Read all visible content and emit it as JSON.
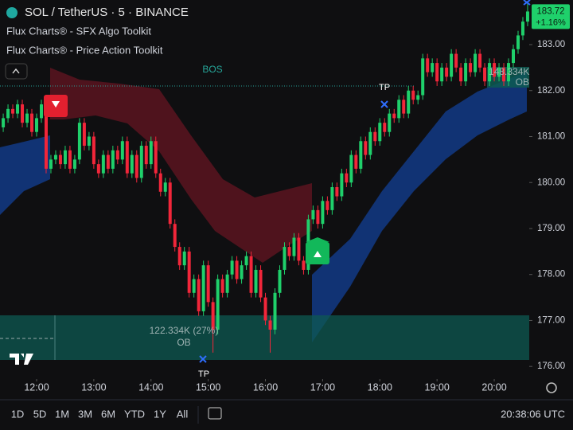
{
  "header": {
    "symbol": "SOL / TetherUS · 5 · BINANCE",
    "indicators": [
      "Flux Charts® - SFX Algo Toolkit",
      "Flux Charts® - Price Action Toolkit"
    ]
  },
  "chart_data": {
    "type": "candlestick",
    "up_color": "#1fd06b",
    "down_color": "#f2263a",
    "x": [
      "11:25",
      "11:30",
      "11:35",
      "11:40",
      "11:45",
      "11:50",
      "11:55",
      "12:00",
      "12:05",
      "12:10",
      "12:15",
      "12:20",
      "12:25",
      "12:30",
      "12:35",
      "12:40",
      "12:45",
      "12:50",
      "12:55",
      "13:00",
      "13:05",
      "13:10",
      "13:15",
      "13:20",
      "13:25",
      "13:30",
      "13:35",
      "13:40",
      "13:45",
      "13:50",
      "13:55",
      "14:00",
      "14:05",
      "14:10",
      "14:15",
      "14:20",
      "14:25",
      "14:30",
      "14:35",
      "14:40",
      "14:45",
      "14:50",
      "14:55",
      "15:00",
      "15:05",
      "15:10",
      "15:15",
      "15:20",
      "15:25",
      "15:30",
      "15:35",
      "15:40",
      "15:45",
      "15:50",
      "15:55",
      "16:00",
      "16:05",
      "16:10",
      "16:15",
      "16:20",
      "16:25",
      "16:30",
      "16:35",
      "16:40",
      "16:45",
      "16:50",
      "16:55",
      "17:00",
      "17:05",
      "17:10",
      "17:15",
      "17:20",
      "17:25",
      "17:30",
      "17:35",
      "17:40",
      "17:45",
      "17:50",
      "17:55",
      "18:00",
      "18:05",
      "18:10",
      "18:15",
      "18:20",
      "18:25",
      "18:30",
      "18:35",
      "18:40",
      "18:45",
      "18:50",
      "18:55",
      "19:00",
      "19:05",
      "19:10",
      "19:15",
      "19:20",
      "19:25",
      "19:30",
      "19:35",
      "19:40",
      "19:45",
      "19:50",
      "19:55",
      "20:00",
      "20:05",
      "20:10",
      "20:15",
      "20:20",
      "20:25",
      "20:30",
      "20:35"
    ],
    "open": [
      181.2,
      181.4,
      181.6,
      181.5,
      181.7,
      181.3,
      181.5,
      181.1,
      181.4,
      181.7,
      180.3,
      180.5,
      180.6,
      180.4,
      180.7,
      180.3,
      180.5,
      181.3,
      180.8,
      181.0,
      180.4,
      180.2,
      180.6,
      180.3,
      180.7,
      180.5,
      180.9,
      180.2,
      180.6,
      180.1,
      180.8,
      180.4,
      180.9,
      180.2,
      179.8,
      180.0,
      179.1,
      178.6,
      178.2,
      178.5,
      177.6,
      177.9,
      177.2,
      178.2,
      177.4,
      176.8,
      177.9,
      177.6,
      178.0,
      178.3,
      177.9,
      178.2,
      178.4,
      177.6,
      178.1,
      177.5,
      177.0,
      176.8,
      177.6,
      178.1,
      178.6,
      178.4,
      178.8,
      178.3,
      178.1,
      179.2,
      179.4,
      179.1,
      179.6,
      179.4,
      179.9,
      179.7,
      180.2,
      180.0,
      180.6,
      180.3,
      180.9,
      180.6,
      181.1,
      180.9,
      181.3,
      181.1,
      181.5,
      181.4,
      181.8,
      181.5,
      182.0,
      181.8,
      181.9,
      182.7,
      182.4,
      182.6,
      182.2,
      182.5,
      182.3,
      182.8,
      182.5,
      182.2,
      182.6,
      182.4,
      182.8,
      182.5,
      182.2,
      182.6,
      182.3,
      182.5,
      182.2,
      182.6,
      182.9,
      183.2,
      183.5
    ],
    "high": [
      181.5,
      181.7,
      181.7,
      181.8,
      181.8,
      181.6,
      181.6,
      181.5,
      181.8,
      181.8,
      180.6,
      180.7,
      180.7,
      180.8,
      180.8,
      180.6,
      181.4,
      181.4,
      181.1,
      181.1,
      180.5,
      180.7,
      180.7,
      180.8,
      180.8,
      181.0,
      181.0,
      180.7,
      180.7,
      180.9,
      180.9,
      181.0,
      181.0,
      180.3,
      180.1,
      180.1,
      179.2,
      178.7,
      178.6,
      178.6,
      178.0,
      178.0,
      178.3,
      178.3,
      177.5,
      178.0,
      178.0,
      178.1,
      178.4,
      178.4,
      178.3,
      178.5,
      178.5,
      178.2,
      178.2,
      177.6,
      177.1,
      177.7,
      178.2,
      178.7,
      178.7,
      178.9,
      178.9,
      178.4,
      179.3,
      179.5,
      179.5,
      179.7,
      179.7,
      180.0,
      180.0,
      180.3,
      180.3,
      180.7,
      180.7,
      181.0,
      181.0,
      181.2,
      181.2,
      181.4,
      181.4,
      181.6,
      181.6,
      181.9,
      181.9,
      182.1,
      182.1,
      182.0,
      182.8,
      182.8,
      182.7,
      182.7,
      182.6,
      182.6,
      182.9,
      182.9,
      182.6,
      182.7,
      182.7,
      182.9,
      182.9,
      182.6,
      182.7,
      182.7,
      182.6,
      182.6,
      182.7,
      183.0,
      183.3,
      183.6,
      183.9
    ],
    "low": [
      181.1,
      181.3,
      181.4,
      181.4,
      181.2,
      181.2,
      181.0,
      181.0,
      181.3,
      180.2,
      180.2,
      180.4,
      180.3,
      180.3,
      180.2,
      180.2,
      180.4,
      180.7,
      180.7,
      180.3,
      180.1,
      180.1,
      180.2,
      180.2,
      180.4,
      180.4,
      180.1,
      180.1,
      180.0,
      180.0,
      180.3,
      180.3,
      180.1,
      179.7,
      179.7,
      179.0,
      178.5,
      178.1,
      178.1,
      177.5,
      177.5,
      177.1,
      177.1,
      177.3,
      176.3,
      176.7,
      177.5,
      177.5,
      177.9,
      177.8,
      177.8,
      178.1,
      177.5,
      177.5,
      177.4,
      176.9,
      176.3,
      176.7,
      177.5,
      178.0,
      178.3,
      178.3,
      178.2,
      178.0,
      178.0,
      179.1,
      179.0,
      179.0,
      179.3,
      179.3,
      179.6,
      179.6,
      179.9,
      179.9,
      180.2,
      180.2,
      180.5,
      180.5,
      180.8,
      180.8,
      181.0,
      181.0,
      181.3,
      181.3,
      181.4,
      181.4,
      181.7,
      181.7,
      181.8,
      182.3,
      182.3,
      182.1,
      182.1,
      182.2,
      182.2,
      182.4,
      182.1,
      182.1,
      182.3,
      182.3,
      182.4,
      182.1,
      182.1,
      182.2,
      182.2,
      182.1,
      182.1,
      182.5,
      182.8,
      183.1,
      183.4
    ],
    "close": [
      181.4,
      181.6,
      181.5,
      181.7,
      181.3,
      181.5,
      181.1,
      181.4,
      181.7,
      180.3,
      180.5,
      180.6,
      180.4,
      180.7,
      180.3,
      180.5,
      181.3,
      180.8,
      181.0,
      180.4,
      180.2,
      180.6,
      180.3,
      180.7,
      180.5,
      180.9,
      180.2,
      180.6,
      180.1,
      180.8,
      180.4,
      180.9,
      180.2,
      179.8,
      180.0,
      179.1,
      178.6,
      178.2,
      178.5,
      177.6,
      177.9,
      177.2,
      178.2,
      177.4,
      176.8,
      177.9,
      177.6,
      178.0,
      178.3,
      177.9,
      178.2,
      178.4,
      177.6,
      178.1,
      177.5,
      177.0,
      176.8,
      177.6,
      178.1,
      178.6,
      178.4,
      178.8,
      178.3,
      178.1,
      179.2,
      179.4,
      179.1,
      179.6,
      179.4,
      179.9,
      179.7,
      180.2,
      180.0,
      180.6,
      180.3,
      180.9,
      180.6,
      181.1,
      180.9,
      181.3,
      181.1,
      181.5,
      181.4,
      181.8,
      181.5,
      182.0,
      181.8,
      181.9,
      182.7,
      182.4,
      182.6,
      182.2,
      182.5,
      182.3,
      182.8,
      182.5,
      182.2,
      182.6,
      182.4,
      182.8,
      182.5,
      182.2,
      182.6,
      182.3,
      182.5,
      182.2,
      182.6,
      182.9,
      183.2,
      183.5,
      183.72
    ],
    "ylim": [
      175.83,
      183.97
    ],
    "yticks": [
      {
        "value": 176,
        "label": "176.00"
      },
      {
        "value": 177,
        "label": "177.00"
      },
      {
        "value": 178,
        "label": "178.00"
      },
      {
        "value": 179,
        "label": "179.00"
      },
      {
        "value": 180,
        "label": "180.00"
      },
      {
        "value": 181,
        "label": "181.00"
      },
      {
        "value": 182,
        "label": "182.00"
      },
      {
        "value": 183,
        "label": "183.00"
      }
    ],
    "xticks": [
      "12:00",
      "13:00",
      "14:00",
      "15:00",
      "16:00",
      "17:00",
      "18:00",
      "19:00",
      "20:00"
    ],
    "change": "+1.16%",
    "annotations": {
      "bos": "BOS",
      "tp_top": "TP",
      "tp_bottom": "TP",
      "ob_bottom_volume": "122.334K (27%)",
      "ob_bottom": "OB",
      "ob_top_volume": "148.334K",
      "ob_top": "OB"
    }
  },
  "toolbar": {
    "ranges": [
      "1D",
      "5D",
      "1M",
      "3M",
      "6M",
      "YTD",
      "1Y",
      "All"
    ],
    "clock": "20:38:06 UTC"
  }
}
